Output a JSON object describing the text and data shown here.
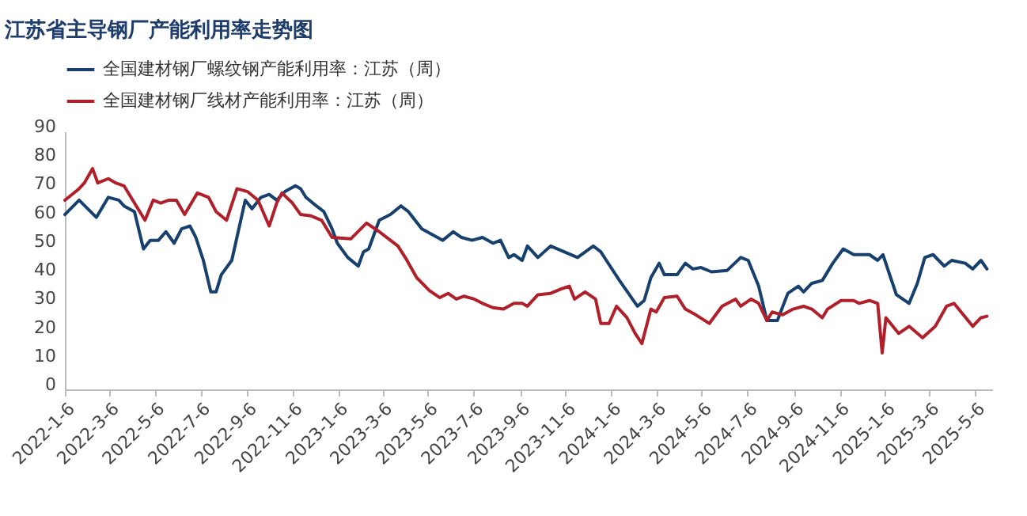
{
  "chart_data": {
    "type": "line",
    "title": "江苏省主导钢厂产能利用率走势图",
    "xlim": [
      "2022-01-06",
      "2025-05-29"
    ],
    "xticks": [
      {
        "value": "2022-01-06",
        "label": "2022-1-6"
      },
      {
        "value": "2022-03-06",
        "label": "2022-3-6"
      },
      {
        "value": "2022-05-06",
        "label": "2022-5-6"
      },
      {
        "value": "2022-07-06",
        "label": "2022-7-6"
      },
      {
        "value": "2022-09-06",
        "label": "2022-9-6"
      },
      {
        "value": "2022-11-06",
        "label": "2022-11-6"
      },
      {
        "value": "2023-01-06",
        "label": "2023-1-6"
      },
      {
        "value": "2023-03-06",
        "label": "2023-3-6"
      },
      {
        "value": "2023-05-06",
        "label": "2023-5-6"
      },
      {
        "value": "2023-07-06",
        "label": "2023-7-6"
      },
      {
        "value": "2023-09-06",
        "label": "2023-9-6"
      },
      {
        "value": "2023-11-06",
        "label": "2023-11-6"
      },
      {
        "value": "2024-01-06",
        "label": "2024-1-6"
      },
      {
        "value": "2024-03-06",
        "label": "2024-3-6"
      },
      {
        "value": "2024-05-06",
        "label": "2024-5-6"
      },
      {
        "value": "2024-07-06",
        "label": "2024-7-6"
      },
      {
        "value": "2024-09-06",
        "label": "2024-9-6"
      },
      {
        "value": "2024-11-06",
        "label": "2024-11-6"
      },
      {
        "value": "2025-01-06",
        "label": "2025-1-6"
      },
      {
        "value": "2025-03-06",
        "label": "2025-3-6"
      },
      {
        "value": "2025-05-06",
        "label": "2025-5-6"
      }
    ],
    "ylim": [
      0,
      90
    ],
    "yticks": [
      0,
      10,
      20,
      30,
      40,
      50,
      60,
      70,
      80,
      90
    ],
    "grid": false,
    "legend": "top",
    "marker": "none",
    "line_style": "solid",
    "series": [
      {
        "name": "全国建材钢厂螺纹钢产能利用率：江苏（周）",
        "color": "#17406d",
        "x": [
          "2022-01-06",
          "2022-01-25",
          "2022-02-17",
          "2022-03-05",
          "2022-03-19",
          "2022-03-26",
          "2022-04-09",
          "2022-04-21",
          "2022-04-30",
          "2022-05-11",
          "2022-05-21",
          "2022-06-01",
          "2022-06-11",
          "2022-06-22",
          "2022-06-30",
          "2022-07-10",
          "2022-07-20",
          "2022-07-27",
          "2022-08-03",
          "2022-08-17",
          "2022-09-04",
          "2022-09-13",
          "2022-09-25",
          "2022-10-06",
          "2022-10-16",
          "2022-10-27",
          "2022-11-10",
          "2022-11-17",
          "2022-11-24",
          "2022-12-08",
          "2022-12-18",
          "2022-12-29",
          "2023-01-05",
          "2023-01-19",
          "2023-02-02",
          "2023-02-09",
          "2023-02-16",
          "2023-03-02",
          "2023-03-17",
          "2023-03-31",
          "2023-04-10",
          "2023-04-28",
          "2023-05-12",
          "2023-05-26",
          "2023-06-09",
          "2023-06-20",
          "2023-07-04",
          "2023-07-18",
          "2023-08-01",
          "2023-08-11",
          "2023-08-22",
          "2023-08-29",
          "2023-09-09",
          "2023-09-16",
          "2023-09-30",
          "2023-10-17",
          "2023-11-04",
          "2023-11-22",
          "2023-12-13",
          "2023-12-23",
          "2024-01-17",
          "2024-02-10",
          "2024-02-19",
          "2024-02-28",
          "2024-03-10",
          "2024-03-17",
          "2024-04-03",
          "2024-04-14",
          "2024-04-24",
          "2024-05-05",
          "2024-05-19",
          "2024-06-09",
          "2024-06-27",
          "2024-07-07",
          "2024-07-21",
          "2024-08-01",
          "2024-08-15",
          "2024-08-29",
          "2024-09-12",
          "2024-09-19",
          "2024-09-30",
          "2024-10-14",
          "2024-10-28",
          "2024-11-11",
          "2024-11-25",
          "2024-12-16",
          "2024-12-27",
          "2025-01-03",
          "2025-01-21",
          "2025-02-07",
          "2025-02-18",
          "2025-02-28",
          "2025-03-11",
          "2025-03-26",
          "2025-04-05",
          "2025-04-23",
          "2025-05-03",
          "2025-05-14",
          "2025-05-22"
        ],
        "values": [
          61,
          66,
          60,
          67,
          66,
          64,
          62,
          49,
          52,
          52,
          55,
          51,
          56,
          57,
          53,
          45,
          34,
          34,
          40,
          45,
          66,
          63,
          67,
          68,
          66,
          69,
          71,
          70,
          67,
          64,
          62,
          56,
          51,
          46,
          43,
          48,
          49,
          59,
          61,
          64,
          62,
          56,
          54,
          52,
          55,
          53,
          52,
          53,
          51,
          52,
          46,
          47,
          45,
          50,
          46,
          50,
          48,
          46,
          50,
          48,
          38,
          29,
          31,
          39,
          44,
          40,
          40,
          44,
          42,
          42.5,
          41,
          41.5,
          46,
          45,
          36,
          24,
          24,
          33.5,
          36,
          34,
          37,
          38,
          44,
          49,
          47,
          47,
          45,
          47,
          33,
          30,
          37,
          46,
          47,
          43,
          45,
          44,
          42,
          45,
          42
        ]
      },
      {
        "name": "全国建材钢厂线材产能利用率：江苏（周）",
        "color": "#b0202a",
        "x": [
          "2022-01-06",
          "2022-01-25",
          "2022-02-01",
          "2022-02-12",
          "2022-02-19",
          "2022-03-05",
          "2022-03-15",
          "2022-03-26",
          "2022-04-09",
          "2022-04-23",
          "2022-05-04",
          "2022-05-14",
          "2022-05-25",
          "2022-06-04",
          "2022-06-15",
          "2022-07-02",
          "2022-07-17",
          "2022-07-27",
          "2022-08-10",
          "2022-08-24",
          "2022-09-07",
          "2022-09-21",
          "2022-10-06",
          "2022-10-16",
          "2022-10-23",
          "2022-11-06",
          "2022-11-17",
          "2022-12-01",
          "2022-12-15",
          "2022-12-29",
          "2023-01-23",
          "2023-02-13",
          "2023-03-02",
          "2023-03-17",
          "2023-03-27",
          "2023-04-07",
          "2023-04-21",
          "2023-05-08",
          "2023-05-22",
          "2023-06-02",
          "2023-06-13",
          "2023-06-23",
          "2023-07-07",
          "2023-07-18",
          "2023-08-01",
          "2023-08-15",
          "2023-08-29",
          "2023-09-09",
          "2023-09-16",
          "2023-09-30",
          "2023-10-17",
          "2023-10-31",
          "2023-11-11",
          "2023-11-18",
          "2023-12-02",
          "2023-12-16",
          "2023-12-23",
          "2024-01-03",
          "2024-01-13",
          "2024-01-27",
          "2024-02-07",
          "2024-02-16",
          "2024-02-28",
          "2024-03-06",
          "2024-03-17",
          "2024-04-03",
          "2024-04-14",
          "2024-04-28",
          "2024-05-16",
          "2024-06-02",
          "2024-06-20",
          "2024-06-27",
          "2024-07-11",
          "2024-07-21",
          "2024-08-01",
          "2024-08-08",
          "2024-08-22",
          "2024-09-05",
          "2024-09-19",
          "2024-09-30",
          "2024-10-14",
          "2024-10-21",
          "2024-11-08",
          "2024-11-25",
          "2024-12-02",
          "2024-12-16",
          "2024-12-27",
          "2025-01-02",
          "2025-01-07",
          "2025-01-24",
          "2025-02-07",
          "2025-02-25",
          "2025-03-14",
          "2025-03-29",
          "2025-04-08",
          "2025-05-03",
          "2025-05-14",
          "2025-05-22"
        ],
        "values": [
          66,
          70,
          72,
          77,
          72,
          73.5,
          72,
          71,
          65,
          59,
          66,
          65,
          66,
          66,
          61,
          68.5,
          67,
          62,
          59,
          70,
          69,
          66,
          57,
          65,
          68.5,
          65,
          61,
          60.5,
          59,
          53,
          52.5,
          58,
          55,
          52,
          50,
          45.5,
          39,
          34.5,
          32,
          33.5,
          31.5,
          32.5,
          31.5,
          30,
          28.5,
          28,
          30,
          30,
          29,
          33,
          33.5,
          35,
          36,
          31.5,
          34,
          31.5,
          23,
          23,
          29,
          25,
          19.5,
          16,
          28,
          27,
          32,
          32.5,
          28,
          26,
          23,
          29,
          31.5,
          29,
          31.5,
          30,
          24,
          27,
          26,
          28,
          29,
          28,
          25,
          28,
          31,
          31,
          30,
          31,
          30,
          12.7,
          25,
          19.5,
          22,
          18,
          22,
          29,
          30,
          22,
          25,
          25.5
        ]
      }
    ]
  }
}
